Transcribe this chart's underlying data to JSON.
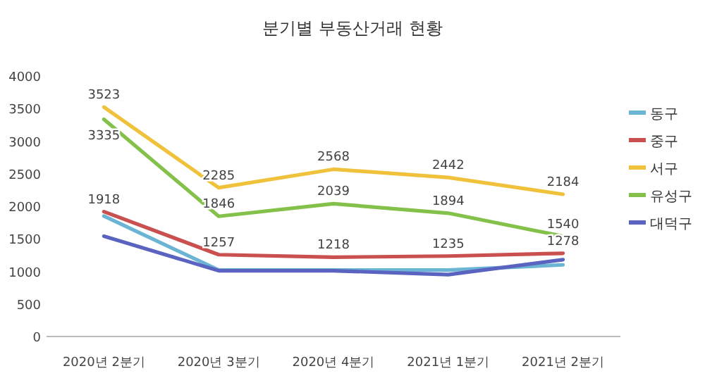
{
  "chart_data": {
    "type": "line",
    "title": "분기별 부동산거래 현황",
    "categories": [
      "2020년 2분기",
      "2020년 3분기",
      "2020년 4분기",
      "2021년 1분기",
      "2021년 2분기"
    ],
    "series": [
      {
        "name": "동구",
        "color": "#6cb4d4",
        "values": [
          1850,
          1020,
          1020,
          1020,
          1100
        ]
      },
      {
        "name": "중구",
        "color": "#c9504e",
        "values": [
          1918,
          1257,
          1218,
          1235,
          1278
        ],
        "value_labels": [
          "1918",
          "1257",
          "1218",
          "1235",
          "1278"
        ]
      },
      {
        "name": "서구",
        "color": "#f0c23c",
        "values": [
          3523,
          2285,
          2568,
          2442,
          2184
        ],
        "value_labels": [
          "3523",
          "2285",
          "2568",
          "2442",
          "2184"
        ]
      },
      {
        "name": "유성구",
        "color": "#84c14a",
        "values": [
          3335,
          1846,
          2039,
          1894,
          1540
        ],
        "value_labels": [
          "3335",
          "1846",
          "2039",
          "1894",
          "1540"
        ]
      },
      {
        "name": "대덕구",
        "color": "#5b63c0",
        "values": [
          1540,
          1010,
          1010,
          950,
          1180
        ]
      }
    ],
    "ylim": [
      0,
      4000
    ],
    "yticks": [
      0,
      500,
      1000,
      1500,
      2000,
      2500,
      3000,
      3500,
      4000
    ],
    "grid": false,
    "legend": "right",
    "marker": "none",
    "line_style": "solid"
  }
}
